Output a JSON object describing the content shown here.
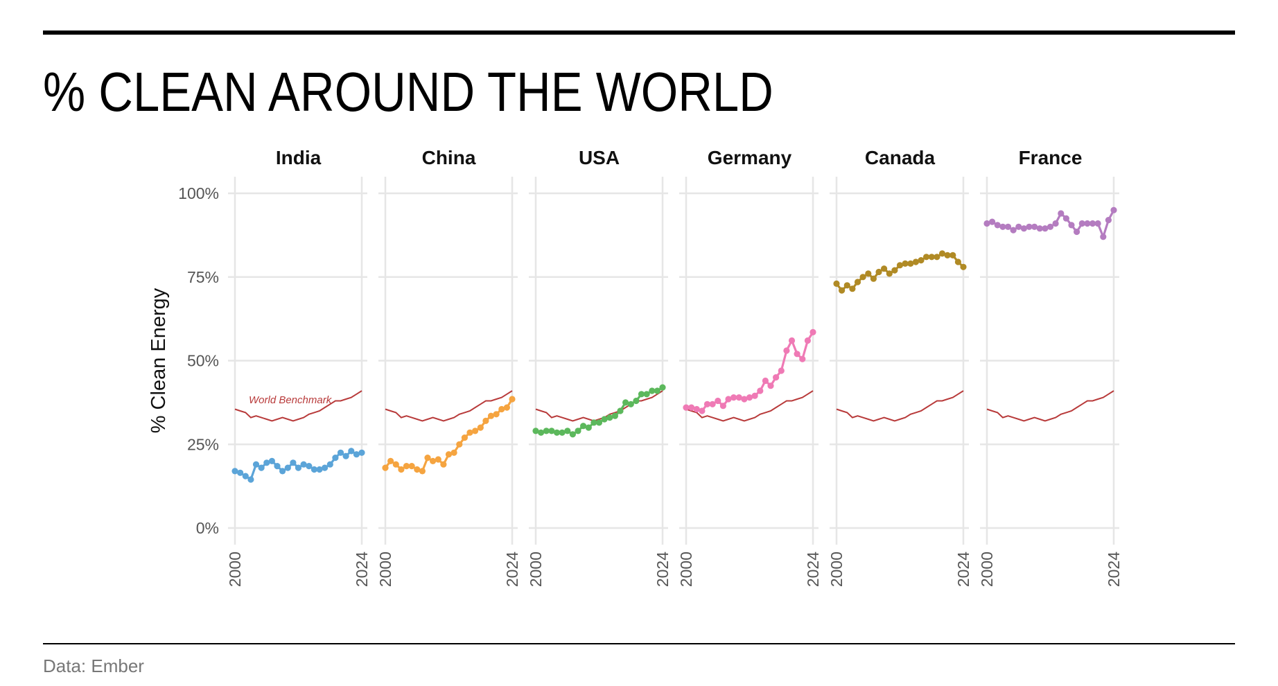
{
  "title": "% CLEAN AROUND THE WORLD",
  "source": "Data: Ember",
  "chart_data": {
    "type": "line",
    "ylabel": "% Clean Energy",
    "ylim": [
      0,
      100
    ],
    "yticks": [
      "0%",
      "25%",
      "50%",
      "75%",
      "100%"
    ],
    "xlim": [
      2000,
      2024
    ],
    "xticks": [
      "2000",
      "2024"
    ],
    "benchmark": {
      "name": "World Benchmark",
      "color": "#b83a3a",
      "x": [
        2000,
        2001,
        2002,
        2003,
        2004,
        2005,
        2006,
        2007,
        2008,
        2009,
        2010,
        2011,
        2012,
        2013,
        2014,
        2015,
        2016,
        2017,
        2018,
        2019,
        2020,
        2021,
        2022,
        2023,
        2024
      ],
      "values": [
        35.5,
        35,
        34.5,
        33,
        33.5,
        33,
        32.5,
        32,
        32.5,
        33,
        32.5,
        32,
        32.5,
        33,
        34,
        34.5,
        35,
        36,
        37,
        38,
        38,
        38.5,
        39,
        40,
        41
      ]
    },
    "panels": [
      {
        "name": "India",
        "color": "#5ba4d8",
        "x": [
          2000,
          2001,
          2002,
          2003,
          2004,
          2005,
          2006,
          2007,
          2008,
          2009,
          2010,
          2011,
          2012,
          2013,
          2014,
          2015,
          2016,
          2017,
          2018,
          2019,
          2020,
          2021,
          2022,
          2023,
          2024
        ],
        "values": [
          17,
          16.5,
          15.5,
          14.5,
          19,
          18,
          19.5,
          20,
          18.5,
          17,
          18,
          19.5,
          18,
          19,
          18.5,
          17.5,
          17.5,
          18,
          19,
          21,
          22.5,
          21.5,
          23,
          22,
          22.5
        ]
      },
      {
        "name": "China",
        "color": "#f5a440",
        "x": [
          2000,
          2001,
          2002,
          2003,
          2004,
          2005,
          2006,
          2007,
          2008,
          2009,
          2010,
          2011,
          2012,
          2013,
          2014,
          2015,
          2016,
          2017,
          2018,
          2019,
          2020,
          2021,
          2022,
          2023,
          2024
        ],
        "values": [
          18,
          20,
          19,
          17.5,
          18.5,
          18.5,
          17.5,
          17,
          21,
          20,
          20.5,
          19,
          22,
          22.5,
          25,
          27,
          28.5,
          29,
          30,
          32,
          33.5,
          34,
          35.5,
          36,
          38.5
        ]
      },
      {
        "name": "USA",
        "color": "#5cb85c",
        "x": [
          2000,
          2001,
          2002,
          2003,
          2004,
          2005,
          2006,
          2007,
          2008,
          2009,
          2010,
          2011,
          2012,
          2013,
          2014,
          2015,
          2016,
          2017,
          2018,
          2019,
          2020,
          2021,
          2022,
          2023,
          2024
        ],
        "values": [
          29,
          28.5,
          29,
          29,
          28.5,
          28.5,
          29,
          28,
          29,
          30.5,
          30,
          31.5,
          31.5,
          32.5,
          33,
          33.5,
          35,
          37.5,
          37,
          38,
          40,
          40,
          41,
          41,
          42
        ]
      },
      {
        "name": "Germany",
        "color": "#ef7ab5",
        "x": [
          2000,
          2001,
          2002,
          2003,
          2004,
          2005,
          2006,
          2007,
          2008,
          2009,
          2010,
          2011,
          2012,
          2013,
          2014,
          2015,
          2016,
          2017,
          2018,
          2019,
          2020,
          2021,
          2022,
          2023,
          2024
        ],
        "values": [
          36,
          36,
          35.5,
          35,
          37,
          37,
          38,
          36.5,
          38.5,
          39,
          39,
          38.5,
          39,
          39.5,
          41,
          44,
          42.5,
          45,
          47,
          53,
          56,
          52,
          50.5,
          56,
          58.5
        ]
      },
      {
        "name": "Canada",
        "color": "#b08a25",
        "x": [
          2000,
          2001,
          2002,
          2003,
          2004,
          2005,
          2006,
          2007,
          2008,
          2009,
          2010,
          2011,
          2012,
          2013,
          2014,
          2015,
          2016,
          2017,
          2018,
          2019,
          2020,
          2021,
          2022,
          2023,
          2024
        ],
        "values": [
          73,
          71,
          72.5,
          71.5,
          73.5,
          75,
          76,
          74.5,
          76.5,
          77.5,
          76,
          77,
          78.5,
          79,
          79,
          79.5,
          80,
          81,
          81,
          81,
          82,
          81.5,
          81.5,
          79.5,
          78
        ]
      },
      {
        "name": "France",
        "color": "#b47cc0",
        "x": [
          2000,
          2001,
          2002,
          2003,
          2004,
          2005,
          2006,
          2007,
          2008,
          2009,
          2010,
          2011,
          2012,
          2013,
          2014,
          2015,
          2016,
          2017,
          2018,
          2019,
          2020,
          2021,
          2022,
          2023,
          2024
        ],
        "values": [
          91,
          91.5,
          90.5,
          90,
          90,
          89,
          90,
          89.5,
          90,
          90,
          89.5,
          89.5,
          90,
          91,
          94,
          92.5,
          90.5,
          88.5,
          91,
          91,
          91,
          91,
          87,
          92,
          95
        ]
      }
    ]
  }
}
